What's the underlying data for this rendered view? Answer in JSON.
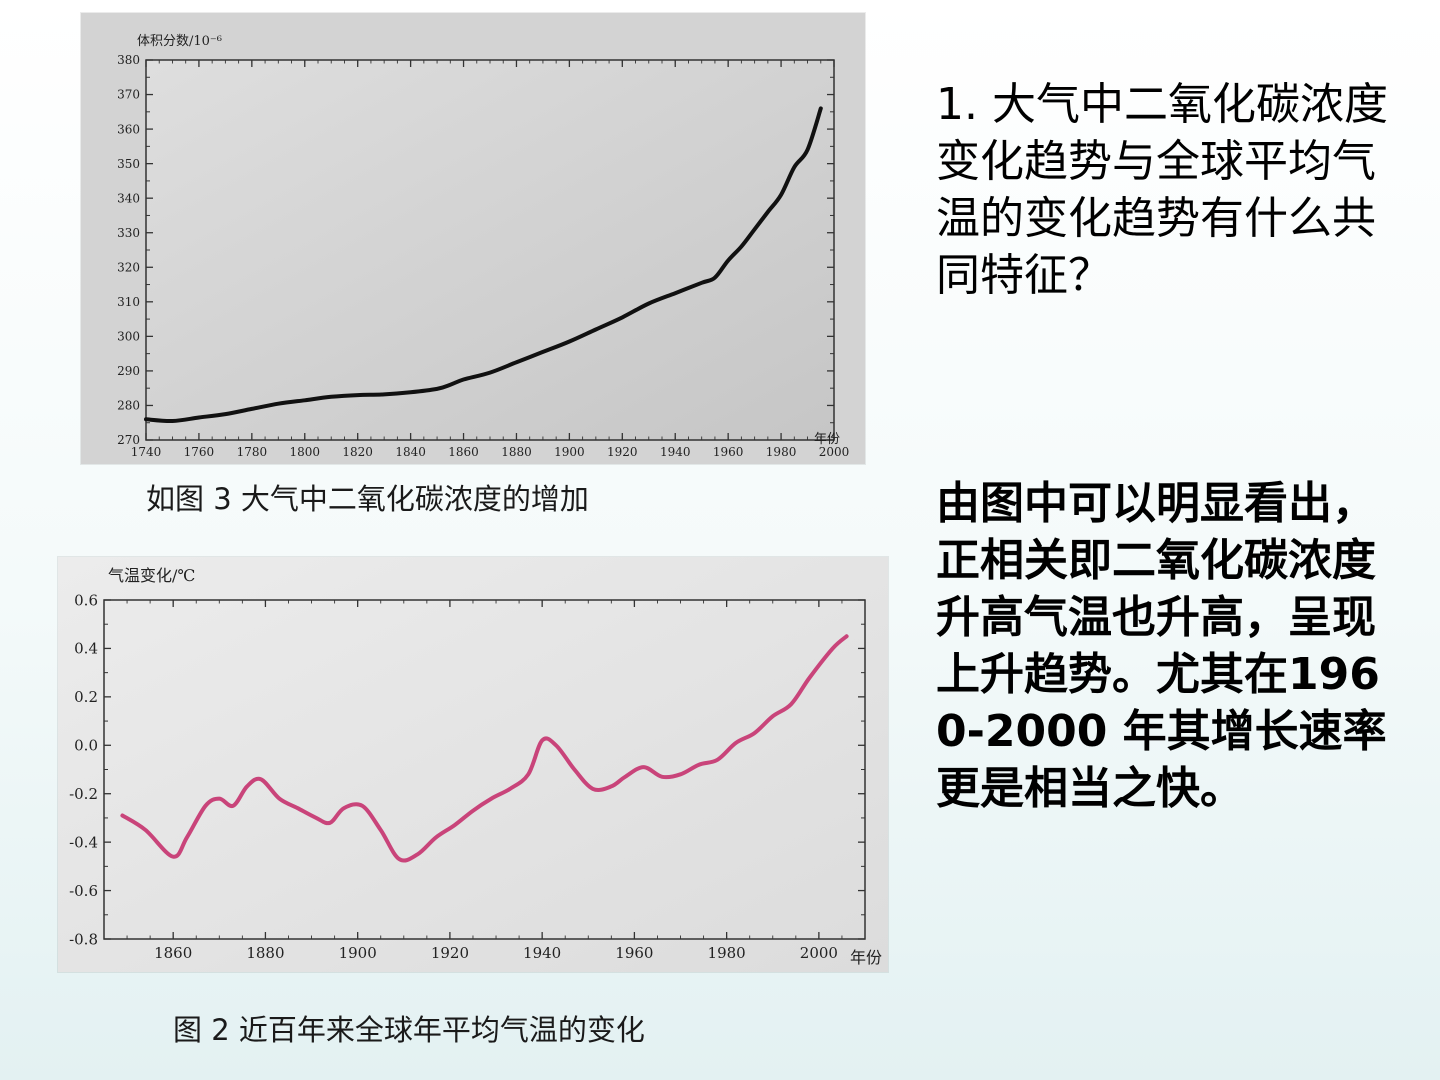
{
  "question": "1. 大气中二氧化碳浓度变化趋势与全球平均气温的变化趋势有什么共同特征？",
  "answer": "由图中可以明显看出，正相关即二氧化碳浓度升高气温也升高，呈现上升趋势。尤其在1960-2000 年其增长速率更是相当之快。",
  "colors": {
    "co2_line": "#111111",
    "temp_line": "#c9447a"
  },
  "chart_data": [
    {
      "type": "line",
      "caption": "如图 3   大气中二氧化碳浓度的增加",
      "ylabel": "体积分数/10⁻⁶",
      "xlabel": "年份",
      "xlim": [
        1740,
        2000
      ],
      "ylim": [
        270,
        380
      ],
      "xticks": [
        1740,
        1760,
        1780,
        1800,
        1820,
        1840,
        1860,
        1880,
        1900,
        1920,
        1940,
        1960,
        1980,
        2000
      ],
      "yticks": [
        270,
        280,
        290,
        300,
        310,
        320,
        330,
        340,
        350,
        360,
        370,
        380
      ],
      "series": [
        {
          "x": [
            1740,
            1750,
            1760,
            1770,
            1780,
            1790,
            1800,
            1810,
            1820,
            1830,
            1840,
            1850,
            1855,
            1860,
            1870,
            1880,
            1890,
            1900,
            1910,
            1920,
            1930,
            1940,
            1950,
            1955,
            1960,
            1965,
            1970,
            1975,
            1980,
            1985,
            1990,
            1995
          ],
          "y": [
            276,
            275.5,
            276.5,
            277.5,
            279,
            280.5,
            281.5,
            282.5,
            283,
            283.2,
            283.8,
            284.8,
            286,
            287.5,
            289.5,
            292.5,
            295.5,
            298.5,
            302,
            305.5,
            309.5,
            312.5,
            315.5,
            317,
            322,
            326,
            331,
            336,
            341,
            349,
            354,
            366
          ]
        }
      ]
    },
    {
      "type": "line",
      "caption": "图 2  近百年来全球年平均气温的变化",
      "ylabel": "气温变化/℃",
      "xlabel": "年份",
      "xlim": [
        1845,
        2010
      ],
      "ylim": [
        -0.8,
        0.6
      ],
      "xticks": [
        1860,
        1880,
        1900,
        1920,
        1940,
        1960,
        1980,
        2000
      ],
      "yticks": [
        0.6,
        0.4,
        0.2,
        0.0,
        -0.2,
        -0.4,
        -0.6,
        -0.8
      ],
      "ytick_labels": [
        "0.6",
        "0.4",
        "0.2",
        "0.0",
        "-0.2",
        "-0.4",
        "-0.6",
        "-0.8"
      ],
      "series": [
        {
          "x": [
            1849,
            1854,
            1860,
            1863,
            1867,
            1870,
            1873,
            1876,
            1879,
            1883,
            1887,
            1891,
            1894,
            1897,
            1901,
            1905,
            1909,
            1913,
            1917,
            1921,
            1925,
            1929,
            1933,
            1937,
            1940,
            1943,
            1947,
            1951,
            1955,
            1958,
            1962,
            1966,
            1970,
            1974,
            1978,
            1982,
            1986,
            1990,
            1994,
            1998,
            2003,
            2006
          ],
          "y": [
            -0.29,
            -0.35,
            -0.46,
            -0.38,
            -0.25,
            -0.22,
            -0.25,
            -0.17,
            -0.14,
            -0.22,
            -0.26,
            -0.3,
            -0.32,
            -0.26,
            -0.25,
            -0.35,
            -0.47,
            -0.45,
            -0.38,
            -0.33,
            -0.27,
            -0.22,
            -0.18,
            -0.12,
            0.02,
            0.0,
            -0.1,
            -0.18,
            -0.17,
            -0.13,
            -0.09,
            -0.13,
            -0.12,
            -0.08,
            -0.06,
            0.01,
            0.05,
            0.12,
            0.17,
            0.28,
            0.4,
            0.45
          ]
        }
      ]
    }
  ]
}
